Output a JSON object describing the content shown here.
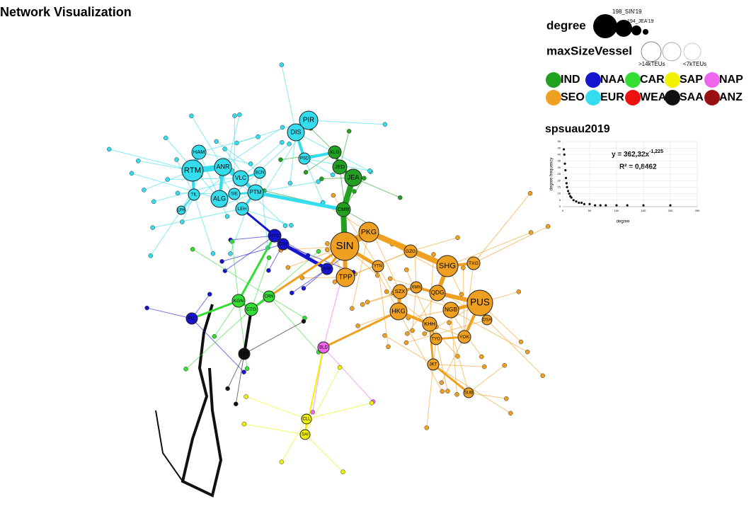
{
  "header": {
    "title": "Network Visualization"
  },
  "legend": {
    "degree": {
      "label": "degree",
      "samples": [
        "198_SIN'19",
        "194_JEA'19"
      ]
    },
    "max_size_vessel": {
      "label": "maxSizeVessel",
      "classes": [
        ">14kTEUs",
        "<7kTEUs"
      ]
    },
    "regions": [
      {
        "code": "IND",
        "color": "#22a022"
      },
      {
        "code": "NAA",
        "color": "#1515d0"
      },
      {
        "code": "CAR",
        "color": "#33dd33"
      },
      {
        "code": "SAP",
        "color": "#f2f200"
      },
      {
        "code": "NAP",
        "color": "#ee66ee"
      },
      {
        "code": "SEO",
        "color": "#f0a020"
      },
      {
        "code": "EUR",
        "color": "#33ddee"
      },
      {
        "code": "WEA",
        "color": "#ee1111"
      },
      {
        "code": "SAA",
        "color": "#111111"
      },
      {
        "code": "ANZ",
        "color": "#991111"
      }
    ]
  },
  "network": {
    "nodes": [
      {
        "label": "SIN",
        "region": "SEO"
      },
      {
        "label": "PKG",
        "region": "SEO"
      },
      {
        "label": "TPP",
        "region": "SEO"
      },
      {
        "label": "SHG",
        "region": "SEO"
      },
      {
        "label": "PUS",
        "region": "SEO"
      },
      {
        "label": "HKG",
        "region": "SEO"
      },
      {
        "label": "QDG",
        "region": "SEO"
      },
      {
        "label": "NGB",
        "region": "SEO"
      },
      {
        "label": "KHH",
        "region": "SEO"
      },
      {
        "label": "SZX",
        "region": "SEO"
      },
      {
        "label": "GZG",
        "region": "SEO"
      },
      {
        "label": "XMN",
        "region": "SEO"
      },
      {
        "label": "TXG",
        "region": "SEO"
      },
      {
        "label": "YOK",
        "region": "SEO"
      },
      {
        "label": "TYO",
        "region": "SEO"
      },
      {
        "label": "JKT",
        "region": "SEO"
      },
      {
        "label": "OSA",
        "region": "SEO"
      },
      {
        "label": "SUB",
        "region": "SEO"
      },
      {
        "label": "YTN",
        "region": "SEO"
      },
      {
        "label": "CMB",
        "region": "IND"
      },
      {
        "label": "JEA",
        "region": "IND"
      },
      {
        "label": "JED",
        "region": "IND"
      },
      {
        "label": "KLG",
        "region": "IND"
      },
      {
        "label": "PIR",
        "region": "EUR"
      },
      {
        "label": "DIS",
        "region": "EUR"
      },
      {
        "label": "PSD",
        "region": "EUR"
      },
      {
        "label": "RTM",
        "region": "EUR"
      },
      {
        "label": "ANR",
        "region": "EUR"
      },
      {
        "label": "VLC",
        "region": "EUR"
      },
      {
        "label": "ALG",
        "region": "EUR"
      },
      {
        "label": "PTM",
        "region": "EUR"
      },
      {
        "label": "SIE",
        "region": "EUR"
      },
      {
        "label": "LEH",
        "region": "EUR"
      },
      {
        "label": "TIL",
        "region": "EUR"
      },
      {
        "label": "HAM",
        "region": "EUR"
      },
      {
        "label": "BCN",
        "region": "EUR"
      },
      {
        "label": "LPA",
        "region": "EUR"
      },
      {
        "label": "NYC",
        "region": "NAA"
      },
      {
        "label": "CHS",
        "region": "NAA"
      },
      {
        "label": "SAV",
        "region": "NAA"
      },
      {
        "label": "FLL",
        "region": "NAA"
      },
      {
        "label": "KGN",
        "region": "CAR"
      },
      {
        "label": "CTG",
        "region": "CAR"
      },
      {
        "label": "CRN",
        "region": "CAR"
      },
      {
        "label": "SSZ",
        "region": "SAA"
      },
      {
        "label": "BLD",
        "region": "NAP"
      },
      {
        "label": "CLL",
        "region": "SAP"
      },
      {
        "label": "SAI",
        "region": "SAP"
      }
    ]
  },
  "chart_data": {
    "type": "scatter",
    "title": "spsuau2019",
    "equation": "y = 362,32x",
    "exponent": "-1,225",
    "r2": "R² = 0,8462",
    "xlabel": "degree",
    "ylabel": "degree frequency",
    "x": [
      2,
      3,
      4,
      5,
      6,
      7,
      8,
      10,
      12,
      14,
      16,
      20,
      25,
      30,
      35,
      40,
      50,
      60,
      70,
      80,
      100,
      120,
      150,
      200
    ],
    "y": [
      44,
      40,
      33,
      28,
      22,
      18,
      15,
      12,
      10,
      8,
      7,
      5,
      4,
      3,
      3,
      2,
      2,
      1,
      1,
      1,
      1,
      1,
      1,
      1
    ],
    "color": "#111111",
    "xlim": [
      0,
      250
    ],
    "ylim": [
      0,
      50
    ],
    "xticks": [
      0,
      50,
      100,
      150,
      200,
      250
    ],
    "yticks": [
      0,
      5,
      10,
      15,
      20,
      25,
      30,
      35,
      40,
      45,
      50
    ],
    "grid": true
  }
}
